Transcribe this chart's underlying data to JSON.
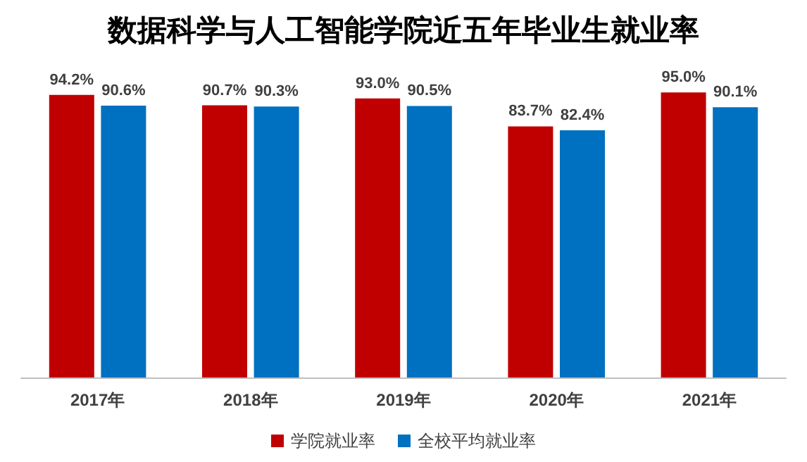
{
  "chart_data": {
    "type": "bar",
    "title": "数据科学与人工智能学院近五年毕业生就业率",
    "categories": [
      "2017年",
      "2018年",
      "2019年",
      "2020年",
      "2021年"
    ],
    "series": [
      {
        "name": "学院就业率",
        "color": "#c00000",
        "values": [
          94.2,
          90.7,
          93.0,
          83.7,
          95.0
        ],
        "value_labels": [
          "94.2%",
          "90.7%",
          "93.0%",
          "83.7%",
          "95.0%"
        ]
      },
      {
        "name": "全校平均就业率",
        "color": "#0070c0",
        "values": [
          90.6,
          90.3,
          90.5,
          82.4,
          90.1
        ],
        "value_labels": [
          "90.6%",
          "90.3%",
          "90.5%",
          "82.4%",
          "90.1%"
        ]
      }
    ],
    "tick_labels": "x",
    "grid": false,
    "legend": "bottom"
  }
}
